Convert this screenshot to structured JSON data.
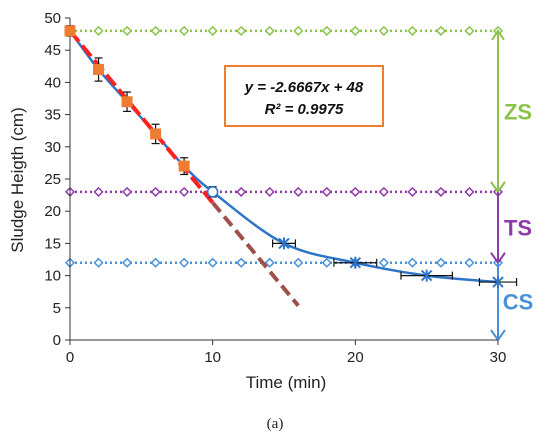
{
  "chart_data": {
    "type": "scatter",
    "xlabel": "Time (min)",
    "ylabel": "Sludge Heigth (cm)",
    "xlim": [
      0,
      30
    ],
    "ylim": [
      0,
      50
    ],
    "xticks": [
      0,
      10,
      20,
      30
    ],
    "yticks": [
      0,
      5,
      10,
      15,
      20,
      25,
      30,
      35,
      40,
      45,
      50
    ],
    "grid": false,
    "series": [
      {
        "id": "measured",
        "color": "#2e75c9",
        "points": [
          {
            "x": 0,
            "y": 48,
            "yerr": 0.8
          },
          {
            "x": 2,
            "y": 42,
            "yerr": 1.8
          },
          {
            "x": 4,
            "y": 37,
            "yerr": 1.5
          },
          {
            "x": 6,
            "y": 32,
            "yerr": 1.5
          },
          {
            "x": 8,
            "y": 27,
            "yerr": 1.3
          },
          {
            "x": 10,
            "y": 23,
            "yerr": 0.8
          },
          {
            "x": 15,
            "y": 15,
            "xerr": 0.8
          },
          {
            "x": 20,
            "y": 12,
            "xerr": 1.5
          },
          {
            "x": 25,
            "y": 10,
            "xerr": 1.8
          },
          {
            "x": 30,
            "y": 9,
            "xerr": 1.3
          }
        ]
      },
      {
        "id": "fit-extended",
        "color": "#a0504b",
        "x": [
          10,
          16
        ],
        "y": [
          21.33,
          5.33
        ]
      },
      {
        "id": "fit-linear",
        "color": "#ff2020",
        "x": [
          0,
          10
        ],
        "y": [
          48,
          21.33
        ]
      }
    ],
    "levels": [
      {
        "label": "ZS",
        "y": 48,
        "color": "#8bc34a"
      },
      {
        "label": "TS",
        "y": 23,
        "color": "#8e3aa8"
      },
      {
        "label": "CS",
        "y": 12,
        "color": "#4a90d9"
      }
    ],
    "annotation": {
      "equation": "y = -2.6667x + 48",
      "r2": "R² = 0.9975"
    }
  },
  "caption": "(a)"
}
